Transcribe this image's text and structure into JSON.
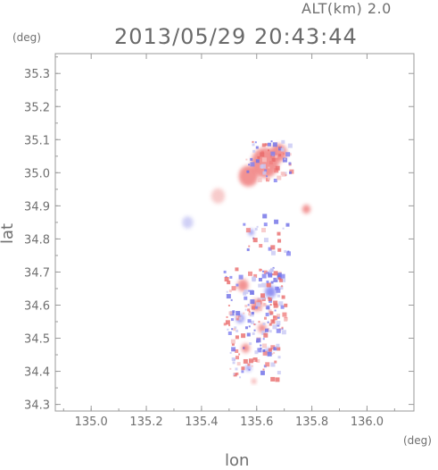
{
  "header": {
    "altitude_label": "ALT(km) 2.0",
    "datetime": "2013/05/29 20:43:44"
  },
  "axes": {
    "y_unit": "(deg)",
    "x_unit": "(deg)",
    "y_label": "lat",
    "x_label": "lon"
  },
  "chart_data": {
    "type": "heatmap",
    "xlabel": "lon",
    "ylabel": "lat",
    "xlim": [
      134.87,
      136.17
    ],
    "ylim": [
      34.28,
      35.36
    ],
    "x_ticks": [
      "135.0",
      "135.2",
      "135.4",
      "135.6",
      "135.8",
      "136.0"
    ],
    "x_tick_values": [
      135.0,
      135.2,
      135.4,
      135.6,
      135.8,
      136.0
    ],
    "y_ticks": [
      "34.3",
      "34.4",
      "34.5",
      "34.6",
      "34.7",
      "34.8",
      "34.9",
      "35.0",
      "35.1",
      "35.2",
      "35.3"
    ],
    "y_tick_values": [
      34.3,
      34.4,
      34.5,
      34.6,
      34.7,
      34.8,
      34.9,
      35.0,
      35.1,
      35.2,
      35.3
    ],
    "grid": false,
    "colors": {
      "positive": "#f08080",
      "negative": "#8080f0",
      "light_positive": "#f6c2c2",
      "light_negative": "#c8c8f4"
    },
    "echoes": [
      {
        "lon": 135.63,
        "lat": 35.03,
        "size": 0.1,
        "polarity": "positive"
      },
      {
        "lon": 135.57,
        "lat": 34.99,
        "size": 0.07,
        "polarity": "positive"
      },
      {
        "lon": 135.68,
        "lat": 35.06,
        "size": 0.06,
        "polarity": "positive"
      },
      {
        "lon": 135.46,
        "lat": 34.93,
        "size": 0.05,
        "polarity": "light_positive"
      },
      {
        "lon": 135.78,
        "lat": 34.89,
        "size": 0.03,
        "polarity": "positive"
      },
      {
        "lon": 135.35,
        "lat": 34.85,
        "size": 0.04,
        "polarity": "light_negative"
      },
      {
        "lon": 135.58,
        "lat": 34.82,
        "size": 0.02,
        "polarity": "negative"
      },
      {
        "lon": 135.55,
        "lat": 34.66,
        "size": 0.04,
        "polarity": "positive"
      },
      {
        "lon": 135.65,
        "lat": 34.64,
        "size": 0.04,
        "polarity": "negative"
      },
      {
        "lon": 135.6,
        "lat": 34.6,
        "size": 0.04,
        "polarity": "positive"
      },
      {
        "lon": 135.54,
        "lat": 34.56,
        "size": 0.03,
        "polarity": "negative"
      },
      {
        "lon": 135.62,
        "lat": 34.53,
        "size": 0.03,
        "polarity": "positive"
      },
      {
        "lon": 135.56,
        "lat": 34.47,
        "size": 0.03,
        "polarity": "positive"
      },
      {
        "lon": 135.64,
        "lat": 34.46,
        "size": 0.02,
        "polarity": "negative"
      },
      {
        "lon": 135.57,
        "lat": 34.41,
        "size": 0.02,
        "polarity": "negative"
      },
      {
        "lon": 135.59,
        "lat": 34.37,
        "size": 0.015,
        "polarity": "positive"
      }
    ]
  }
}
